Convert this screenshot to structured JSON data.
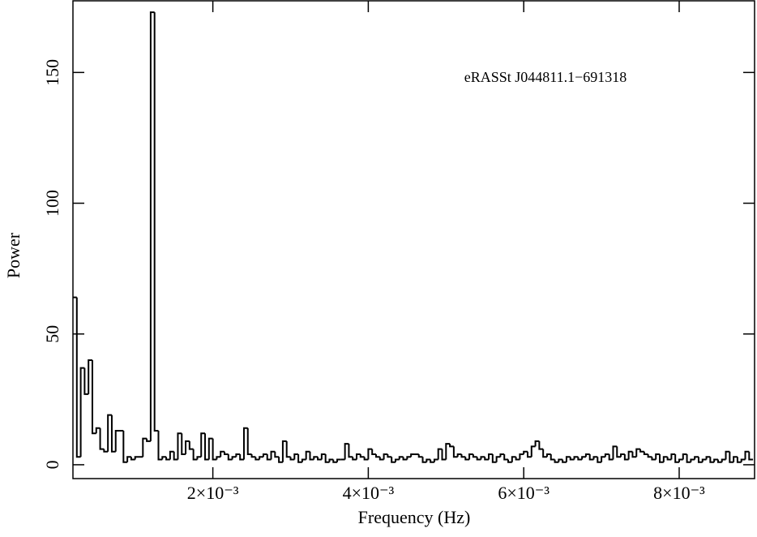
{
  "chart_data": {
    "type": "histogram",
    "annotation": "eRASSt J044811.1−691318",
    "x_label": "Frequency (Hz)",
    "y_label": "Power",
    "color": "#000000",
    "xlim": [
      0.0002,
      0.00897
    ],
    "ylim": [
      -5.3,
      177.4
    ],
    "xticks": [
      {
        "value": 0.002,
        "label": "2×10⁻³"
      },
      {
        "value": 0.004,
        "label": "4×10⁻³"
      },
      {
        "value": 0.006,
        "label": "6×10⁻³"
      },
      {
        "value": 0.008,
        "label": "8×10⁻³"
      }
    ],
    "yticks": [
      0,
      50,
      100,
      150
    ],
    "bins": [
      0.0002,
      0.00025,
      0.0003,
      0.00035,
      0.0004,
      0.00045,
      0.0005,
      0.00055,
      0.0006,
      0.00065,
      0.0007,
      0.00075,
      0.0008,
      0.00085,
      0.0009,
      0.00095,
      0.001,
      0.00105,
      0.0011,
      0.00115,
      0.0012,
      0.00125,
      0.0013,
      0.00135,
      0.0014,
      0.00145,
      0.0015,
      0.00155,
      0.0016,
      0.00165,
      0.0017,
      0.00175,
      0.0018,
      0.00185,
      0.0019,
      0.00195,
      0.002,
      0.00205,
      0.0021,
      0.00215,
      0.0022,
      0.00225,
      0.0023,
      0.00235,
      0.0024,
      0.00245,
      0.0025,
      0.00255,
      0.0026,
      0.00265,
      0.0027,
      0.00275,
      0.0028,
      0.00285,
      0.0029,
      0.00295,
      0.003,
      0.00305,
      0.0031,
      0.00315,
      0.0032,
      0.00325,
      0.0033,
      0.00335,
      0.0034,
      0.00345,
      0.0035,
      0.00355,
      0.0036,
      0.00365,
      0.0037,
      0.00375,
      0.0038,
      0.00385,
      0.0039,
      0.00395,
      0.004,
      0.00405,
      0.0041,
      0.00415,
      0.0042,
      0.00425,
      0.0043,
      0.00435,
      0.0044,
      0.00445,
      0.0045,
      0.00455,
      0.0046,
      0.00465,
      0.0047,
      0.00475,
      0.0048,
      0.00485,
      0.0049,
      0.00495,
      0.005,
      0.00505,
      0.0051,
      0.00515,
      0.0052,
      0.00525,
      0.0053,
      0.00535,
      0.0054,
      0.00545,
      0.0055,
      0.00555,
      0.0056,
      0.00565,
      0.0057,
      0.00575,
      0.0058,
      0.00585,
      0.0059,
      0.00595,
      0.006,
      0.00605,
      0.0061,
      0.00615,
      0.0062,
      0.00625,
      0.0063,
      0.00635,
      0.0064,
      0.00645,
      0.0065,
      0.00655,
      0.0066,
      0.00665,
      0.0067,
      0.00675,
      0.0068,
      0.00685,
      0.0069,
      0.00695,
      0.007,
      0.00705,
      0.0071,
      0.00715,
      0.0072,
      0.00725,
      0.0073,
      0.00735,
      0.0074,
      0.00745,
      0.0075,
      0.00755,
      0.0076,
      0.00765,
      0.0077,
      0.00775,
      0.0078,
      0.00785,
      0.0079,
      0.00795,
      0.008,
      0.00805,
      0.0081,
      0.00815,
      0.0082,
      0.00825,
      0.0083,
      0.00835,
      0.0084,
      0.00845,
      0.0085,
      0.00855,
      0.0086,
      0.00865,
      0.0087,
      0.00875,
      0.0088,
      0.00885,
      0.0089,
      0.00895
    ],
    "values": [
      64,
      3,
      37,
      27,
      40,
      12,
      14,
      6,
      5,
      19,
      5,
      13,
      13,
      1,
      3,
      2,
      3,
      3,
      10,
      9,
      173,
      13,
      2,
      3,
      2,
      5,
      2,
      12,
      4,
      9,
      6,
      2,
      3,
      12,
      2,
      10,
      2,
      3,
      5,
      4,
      2,
      3,
      4,
      2,
      14,
      4,
      3,
      2,
      3,
      4,
      2,
      5,
      3,
      1,
      9,
      3,
      2,
      4,
      1,
      2,
      5,
      2,
      3,
      2,
      4,
      1,
      2,
      1,
      2,
      2,
      8,
      3,
      2,
      4,
      3,
      2,
      6,
      4,
      3,
      2,
      4,
      3,
      1,
      2,
      3,
      2,
      3,
      4,
      4,
      3,
      1,
      2,
      1,
      2,
      6,
      2,
      8,
      7,
      3,
      4,
      3,
      2,
      4,
      3,
      2,
      3,
      2,
      4,
      1,
      3,
      4,
      2,
      1,
      3,
      2,
      4,
      5,
      3,
      7,
      9,
      6,
      3,
      4,
      2,
      1,
      2,
      1,
      3,
      2,
      3,
      2,
      3,
      4,
      2,
      3,
      1,
      3,
      4,
      2,
      7,
      3,
      4,
      2,
      5,
      3,
      6,
      5,
      4,
      3,
      2,
      4,
      1,
      3,
      2,
      4,
      1,
      2,
      4,
      1,
      2,
      3,
      1,
      2,
      3,
      1,
      2,
      1,
      2,
      5,
      1,
      3,
      1,
      2,
      5,
      2
    ]
  }
}
